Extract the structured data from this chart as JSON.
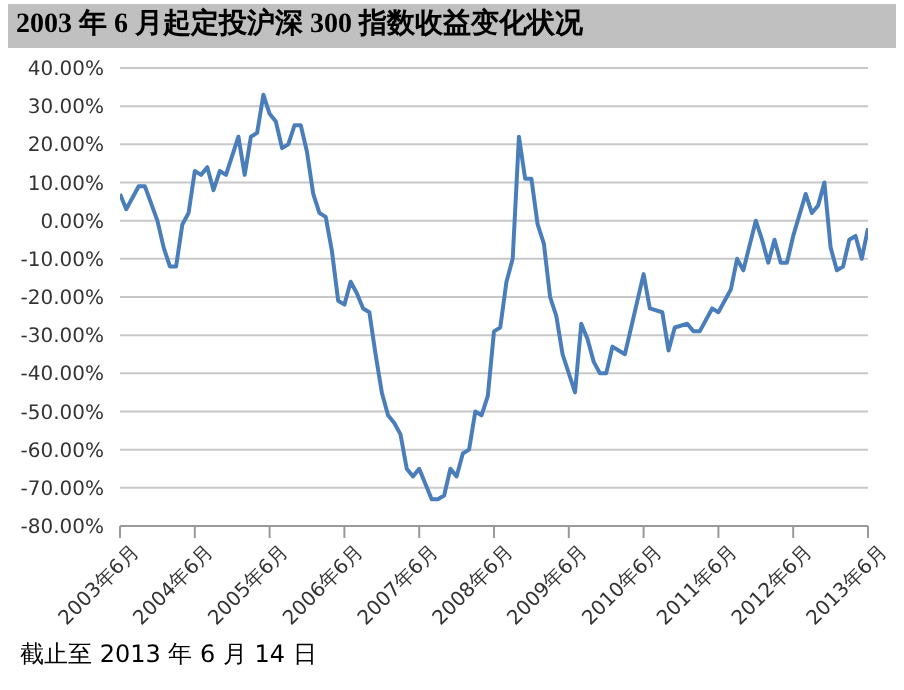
{
  "chart_data": {
    "type": "line",
    "title": "2003 年 6 月起定投沪深 300 指数收益变化状况",
    "annotations": [
      "截止至 2013 年 6 月 14 日"
    ],
    "x": [
      "2003-06",
      "2003-07",
      "2003-09",
      "2003-10",
      "2003-12",
      "2004-01",
      "2004-02",
      "2004-03",
      "2004-04",
      "2004-05",
      "2004-06",
      "2004-07",
      "2004-08",
      "2004-09",
      "2004-10",
      "2004-11",
      "2005-01",
      "2005-02",
      "2005-03",
      "2005-04",
      "2005-05",
      "2005-06",
      "2005-07",
      "2005-08",
      "2005-09",
      "2005-10",
      "2005-11",
      "2005-12",
      "2006-01",
      "2006-02",
      "2006-03",
      "2006-04",
      "2006-05",
      "2006-06",
      "2006-07",
      "2006-08",
      "2006-09",
      "2006-10",
      "2006-11",
      "2006-12",
      "2007-01",
      "2007-02",
      "2007-03",
      "2007-04",
      "2007-05",
      "2007-06",
      "2007-07",
      "2007-08",
      "2007-09",
      "2007-10",
      "2007-11",
      "2007-12",
      "2008-01",
      "2008-02",
      "2008-03",
      "2008-04",
      "2008-05",
      "2008-06",
      "2008-07",
      "2008-08",
      "2008-09",
      "2008-10",
      "2008-11",
      "2008-12",
      "2009-01",
      "2009-02",
      "2009-03",
      "2009-04",
      "2009-05",
      "2009-07",
      "2009-08",
      "2009-09",
      "2009-10",
      "2009-11",
      "2009-12",
      "2010-01",
      "2010-02",
      "2010-03",
      "2010-06",
      "2010-07",
      "2010-09",
      "2010-10",
      "2010-11",
      "2011-01",
      "2011-02",
      "2011-03",
      "2011-05",
      "2011-06",
      "2011-07",
      "2011-08",
      "2011-09",
      "2011-10",
      "2011-12",
      "2012-01",
      "2012-02",
      "2012-03",
      "2012-04",
      "2012-05",
      "2012-06",
      "2012-08",
      "2012-09",
      "2012-10",
      "2012-11",
      "2012-12",
      "2013-01",
      "2013-02",
      "2013-03",
      "2013-04",
      "2013-05",
      "2013-06"
    ],
    "series": [
      {
        "color": "#4a7ebb",
        "values": [
          7,
          3,
          9,
          9,
          0,
          -7,
          -12,
          -12,
          -1,
          2,
          13,
          12,
          14,
          8,
          13,
          12,
          22,
          12,
          22,
          23,
          33,
          28,
          26,
          19,
          20,
          25,
          25,
          18,
          7,
          2,
          1,
          -8,
          -21,
          -22,
          -16,
          -19,
          -23,
          -24,
          -35,
          -45,
          -51,
          -53,
          -56,
          -65,
          -67,
          -65,
          -69,
          -73,
          -73,
          -72,
          -65,
          -67,
          -61,
          -60,
          -50,
          -51,
          -46,
          -29,
          -28,
          -16,
          -10,
          22,
          11,
          11,
          -1,
          -6,
          -20,
          -25,
          -35,
          -45,
          -27,
          -31,
          -37,
          -40,
          -40,
          -33,
          -34,
          -35,
          -14,
          -23,
          -24,
          -34,
          -28,
          -27,
          -29,
          -29,
          -23,
          -24,
          -21,
          -18,
          -10,
          -13,
          0,
          -5,
          -11,
          -5,
          -11,
          -11,
          -4,
          7,
          2,
          4,
          10,
          -7,
          -13,
          -12,
          -5,
          -4,
          -10,
          -2
        ]
      }
    ],
    "xlim": [
      "2003-06",
      "2013-06"
    ],
    "xticks": [
      {
        "value": "2003-06",
        "label": "2003年6月"
      },
      {
        "value": "2004-06",
        "label": "2004年6月"
      },
      {
        "value": "2005-06",
        "label": "2005年6月"
      },
      {
        "value": "2006-06",
        "label": "2006年6月"
      },
      {
        "value": "2007-06",
        "label": "2007年6月"
      },
      {
        "value": "2008-06",
        "label": "2008年6月"
      },
      {
        "value": "2009-06",
        "label": "2009年6月"
      },
      {
        "value": "2010-06",
        "label": "2010年6月"
      },
      {
        "value": "2011-06",
        "label": "2011年6月"
      },
      {
        "value": "2012-06",
        "label": "2012年6月"
      },
      {
        "value": "2013-06",
        "label": "2013年6月"
      }
    ],
    "ylim": [
      -80,
      40
    ],
    "yticks": [
      {
        "value": 40,
        "label": "40.00%"
      },
      {
        "value": 30,
        "label": "30.00%"
      },
      {
        "value": 20,
        "label": "20.00%"
      },
      {
        "value": 10,
        "label": "10.00%"
      },
      {
        "value": 0,
        "label": "0.00%"
      },
      {
        "value": -10,
        "label": "-10.00%"
      },
      {
        "value": -20,
        "label": "-20.00%"
      },
      {
        "value": -30,
        "label": "-30.00%"
      },
      {
        "value": -40,
        "label": "-40.00%"
      },
      {
        "value": -50,
        "label": "-50.00%"
      },
      {
        "value": -60,
        "label": "-60.00%"
      },
      {
        "value": -70,
        "label": "-70.00%"
      },
      {
        "value": -80,
        "label": "-80.00%"
      }
    ],
    "grid": "y"
  }
}
